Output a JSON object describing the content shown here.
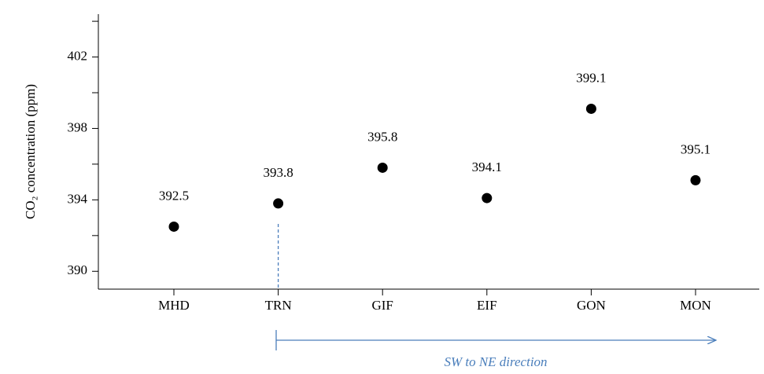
{
  "chart_data": {
    "type": "scatter",
    "y_label": "CO₂ concentration (ppm)",
    "categories": [
      "MHD",
      "TRN",
      "GIF",
      "EIF",
      "GON",
      "MON"
    ],
    "values": [
      392.5,
      393.8,
      395.8,
      394.1,
      399.1,
      395.1
    ],
    "color": "#000000",
    "ylim": [
      389,
      404.4
    ],
    "yticks": [
      390,
      394,
      398,
      402
    ],
    "minor_yticks": [
      392,
      396,
      400,
      404
    ],
    "annotation": "SW  to NE direction",
    "annotation_color": "#4a7ebb"
  }
}
